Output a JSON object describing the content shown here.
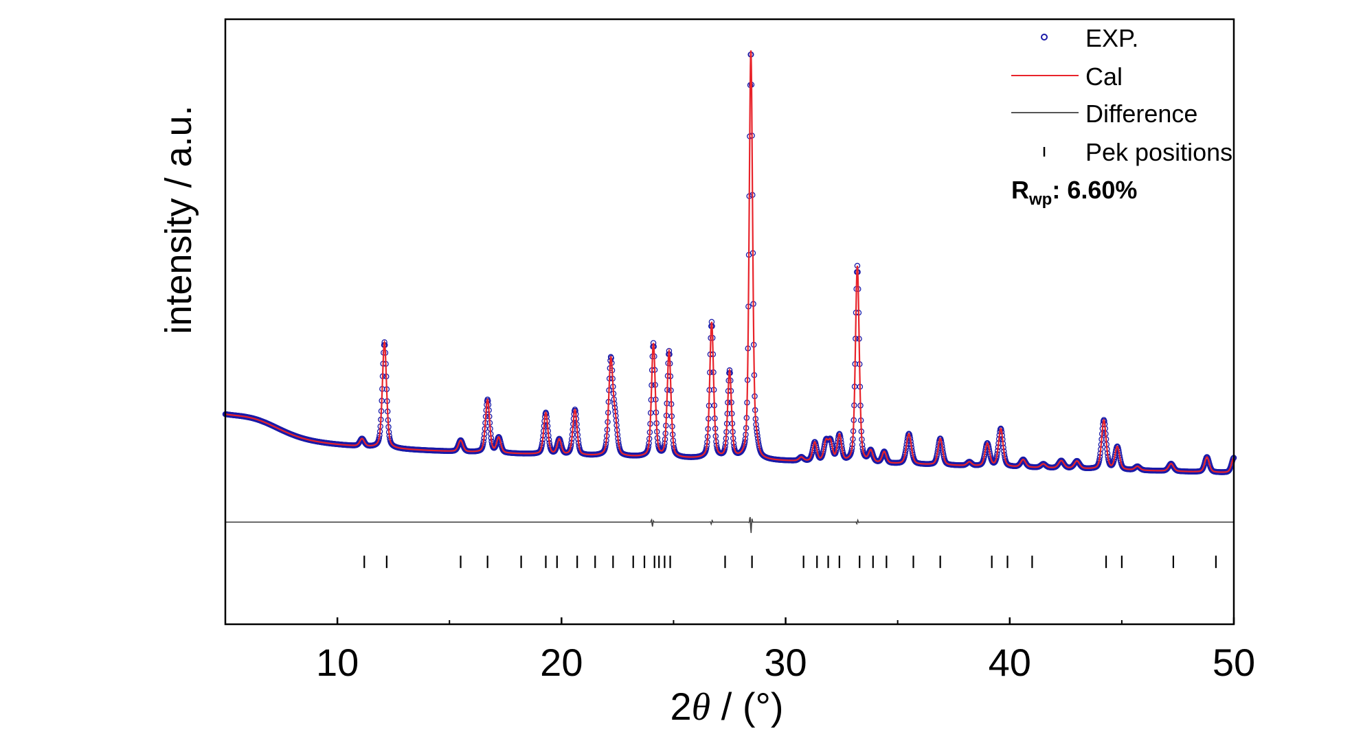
{
  "chart_data": {
    "type": "line",
    "title": "",
    "xlabel_prefix": "2",
    "xlabel_theta": "θ",
    "xlabel_suffix": " / (°)",
    "ylabel": "intensity / a.u.",
    "xlim": [
      5,
      50
    ],
    "ylim": [
      -0.35,
      1.25
    ],
    "x_ticks": [
      10,
      20,
      30,
      40,
      50
    ],
    "x_tick_labels": [
      "10",
      "20",
      "30",
      "40",
      "50"
    ],
    "y_ticks_shown": false,
    "grid": false,
    "legend_position": "top-right",
    "legend": [
      {
        "label": "EXP.",
        "marker": "open-circle",
        "color": "#1a1aa8"
      },
      {
        "label": "Cal",
        "marker": "line",
        "color": "#e8232a"
      },
      {
        "label": "Difference",
        "marker": "line",
        "color": "#555555"
      },
      {
        "label": "Pek positions",
        "marker": "vertical-tick",
        "color": "#000000"
      }
    ],
    "annotation": {
      "main": "R",
      "subscript": "wp",
      "rest": ": 6.60%"
    },
    "baseline": 0.12,
    "baseline_end": 0.05,
    "background_hump": {
      "center": 6.3,
      "width": 1.6,
      "height": 0.03
    },
    "low_angle_rise": {
      "amplitude": 0.07,
      "decay": 3.0
    },
    "peaks": [
      {
        "x": 11.1,
        "h": 0.02,
        "w": 0.12
      },
      {
        "x": 12.1,
        "h": 0.28,
        "w": 0.11
      },
      {
        "x": 15.5,
        "h": 0.03,
        "w": 0.12
      },
      {
        "x": 16.7,
        "h": 0.14,
        "w": 0.11
      },
      {
        "x": 17.2,
        "h": 0.04,
        "w": 0.11
      },
      {
        "x": 19.3,
        "h": 0.11,
        "w": 0.11
      },
      {
        "x": 19.9,
        "h": 0.04,
        "w": 0.11
      },
      {
        "x": 20.6,
        "h": 0.12,
        "w": 0.11
      },
      {
        "x": 22.2,
        "h": 0.25,
        "w": 0.11
      },
      {
        "x": 22.4,
        "h": 0.08,
        "w": 0.11
      },
      {
        "x": 24.1,
        "h": 0.3,
        "w": 0.1
      },
      {
        "x": 24.8,
        "h": 0.28,
        "w": 0.1
      },
      {
        "x": 26.7,
        "h": 0.36,
        "w": 0.1
      },
      {
        "x": 27.5,
        "h": 0.23,
        "w": 0.1
      },
      {
        "x": 28.45,
        "h": 1.08,
        "w": 0.09
      },
      {
        "x": 28.7,
        "h": 0.03,
        "w": 0.1
      },
      {
        "x": 30.7,
        "h": 0.01,
        "w": 0.12
      },
      {
        "x": 31.3,
        "h": 0.05,
        "w": 0.11
      },
      {
        "x": 31.8,
        "h": 0.05,
        "w": 0.11
      },
      {
        "x": 32.0,
        "h": 0.05,
        "w": 0.11
      },
      {
        "x": 32.4,
        "h": 0.07,
        "w": 0.11
      },
      {
        "x": 33.2,
        "h": 0.52,
        "w": 0.1
      },
      {
        "x": 33.8,
        "h": 0.03,
        "w": 0.11
      },
      {
        "x": 34.4,
        "h": 0.03,
        "w": 0.11
      },
      {
        "x": 35.5,
        "h": 0.08,
        "w": 0.13
      },
      {
        "x": 36.9,
        "h": 0.07,
        "w": 0.12
      },
      {
        "x": 38.2,
        "h": 0.01,
        "w": 0.12
      },
      {
        "x": 39.0,
        "h": 0.06,
        "w": 0.12
      },
      {
        "x": 39.6,
        "h": 0.1,
        "w": 0.12
      },
      {
        "x": 40.6,
        "h": 0.02,
        "w": 0.13
      },
      {
        "x": 41.5,
        "h": 0.01,
        "w": 0.13
      },
      {
        "x": 42.3,
        "h": 0.02,
        "w": 0.14
      },
      {
        "x": 43.0,
        "h": 0.02,
        "w": 0.14
      },
      {
        "x": 44.2,
        "h": 0.13,
        "w": 0.12
      },
      {
        "x": 44.8,
        "h": 0.06,
        "w": 0.12
      },
      {
        "x": 45.7,
        "h": 0.01,
        "w": 0.13
      },
      {
        "x": 47.2,
        "h": 0.02,
        "w": 0.13
      },
      {
        "x": 48.8,
        "h": 0.04,
        "w": 0.12
      },
      {
        "x": 50.0,
        "h": 0.04,
        "w": 0.12
      }
    ],
    "difference_level": -0.08,
    "difference_spikes": [
      {
        "x": 24.05,
        "amp": 0.012
      },
      {
        "x": 26.7,
        "amp": 0.006
      },
      {
        "x": 28.45,
        "amp": 0.03
      },
      {
        "x": 33.2,
        "amp": 0.006
      }
    ],
    "tick_level": -0.185,
    "peak_positions": [
      11.2,
      12.2,
      15.5,
      16.7,
      18.2,
      19.3,
      19.8,
      20.7,
      21.5,
      22.3,
      23.2,
      23.7,
      24.15,
      24.35,
      24.6,
      24.85,
      27.3,
      28.5,
      30.8,
      31.4,
      31.9,
      32.4,
      33.3,
      33.9,
      34.5,
      35.7,
      36.9,
      39.2,
      39.9,
      41.0,
      44.3,
      45.0,
      47.3,
      49.2
    ]
  }
}
